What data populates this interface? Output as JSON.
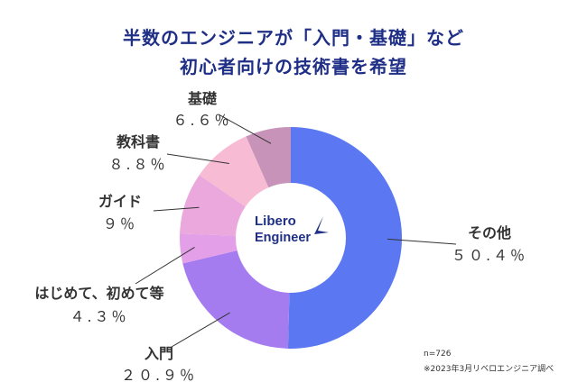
{
  "title_line1": "半数のエンジニアが「入門・基礎」など",
  "title_line2": "初心者向けの技術書を希望",
  "logo": {
    "line1": "Libero",
    "line2": "Engineer"
  },
  "notes": {
    "n": "n=726",
    "source": "※2023年3月リベロエンジニア調べ"
  },
  "chart_data": {
    "type": "pie",
    "donut": true,
    "title": "半数のエンジニアが「入門・基礎」など 初心者向けの技術書を希望",
    "categories": [
      "その他",
      "入門",
      "はじめて、初めて等",
      "ガイド",
      "教科書",
      "基礎"
    ],
    "values": [
      50.4,
      20.9,
      4.3,
      9,
      8.8,
      6.6
    ],
    "value_labels": [
      "５０.４％",
      "２０.９％",
      "４.３％",
      "９％",
      "８.８％",
      "６.６％"
    ],
    "colors": [
      "#5b78f2",
      "#a57cf0",
      "#e3a0e8",
      "#eaa8dc",
      "#f7bcd3",
      "#c893b9"
    ]
  }
}
